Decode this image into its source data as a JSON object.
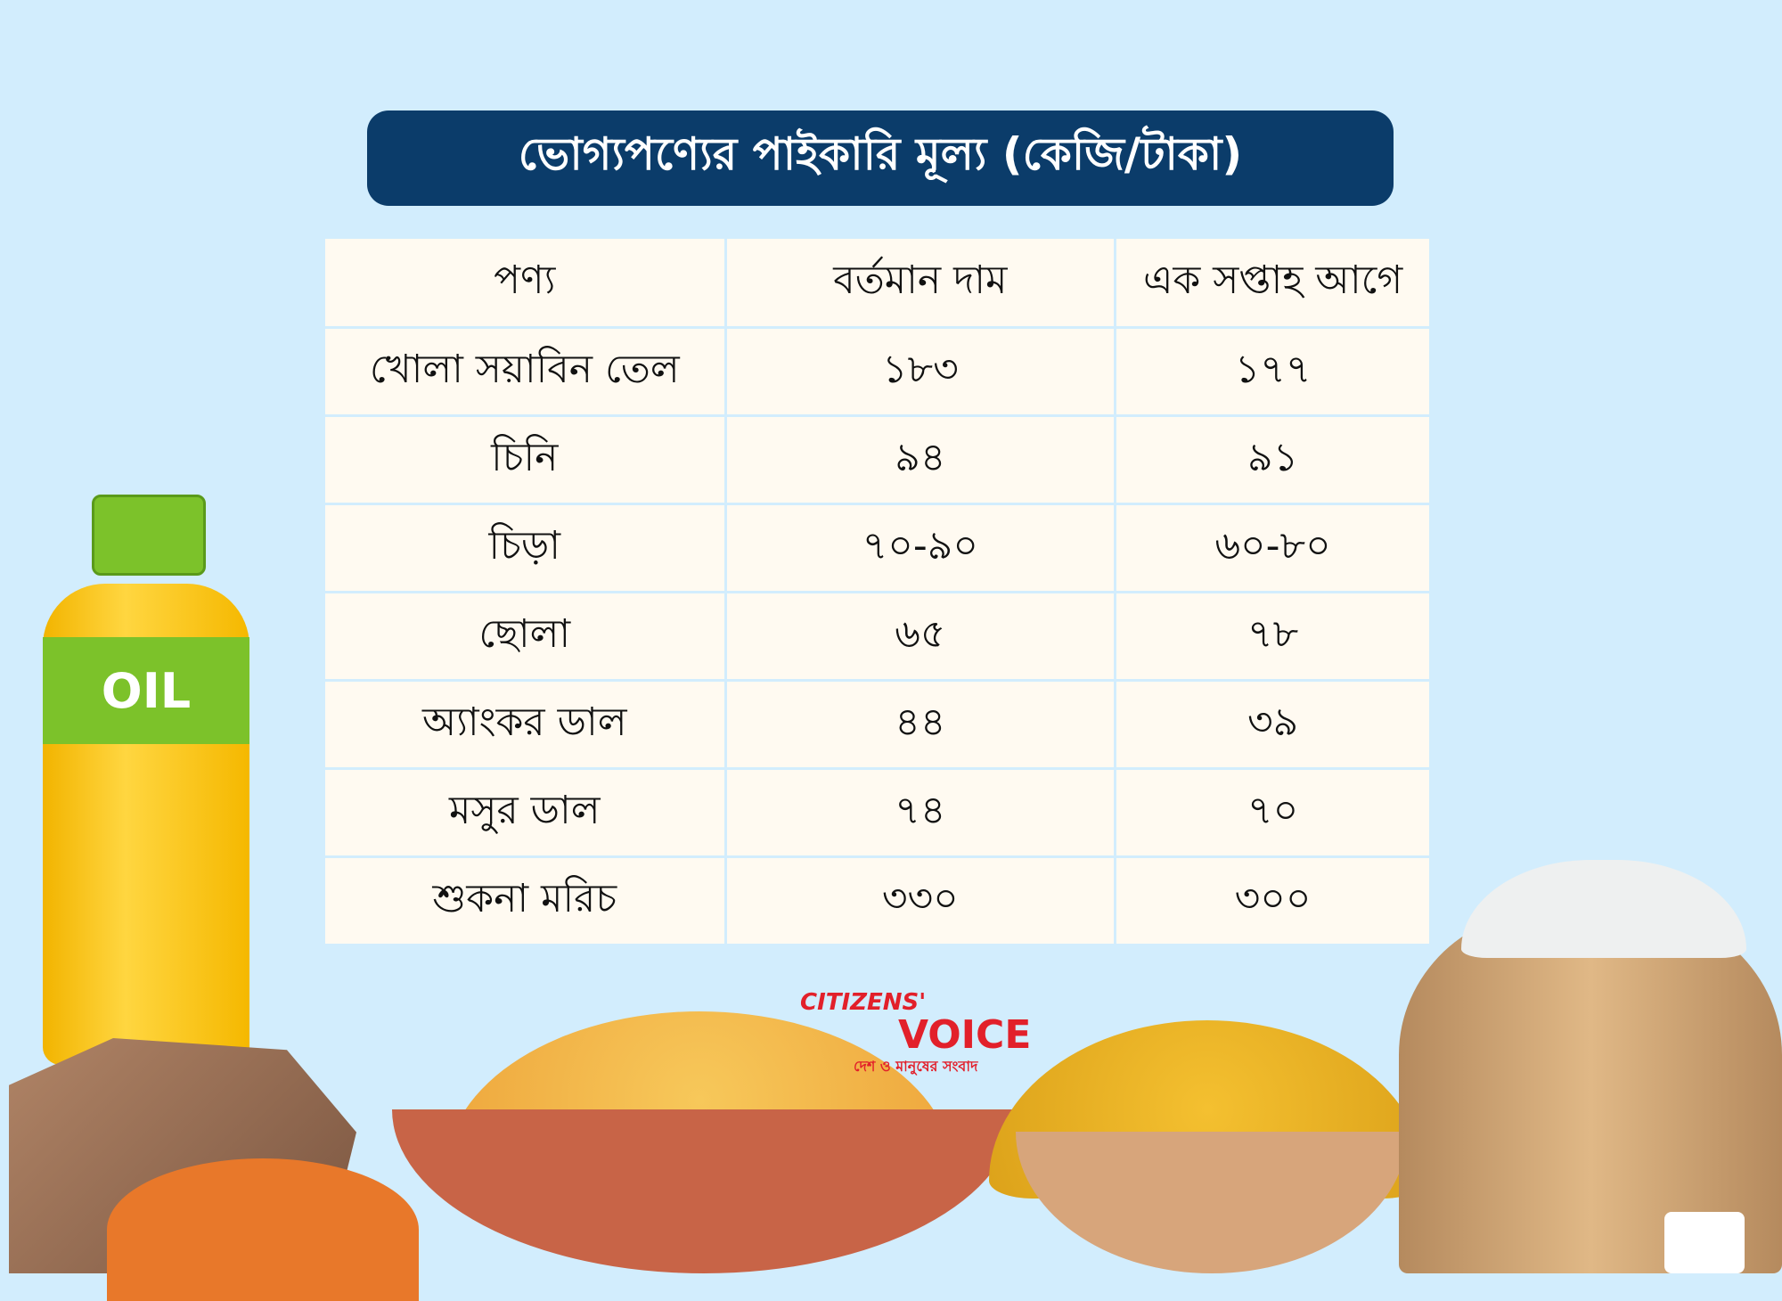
{
  "title": "ভোগ্যপণ্যের পাইকারি মূল্য (কেজি/টাকা)",
  "table": {
    "headers": [
      "পণ্য",
      "বর্তমান দাম",
      "এক সপ্তাহ আগে"
    ],
    "rows": [
      [
        "খোলা সয়াবিন তেল",
        "১৮৩",
        "১৭৭"
      ],
      [
        "চিনি",
        "৯৪",
        "৯১"
      ],
      [
        "চিড়া",
        "৭০-৯০",
        "৬০-৮০"
      ],
      [
        "ছোলা",
        "৬৫",
        "৭৮"
      ],
      [
        "অ্যাংকর ডাল",
        "৪৪",
        "৩৯"
      ],
      [
        "মসুর ডাল",
        "৭৪",
        "৭০"
      ],
      [
        "শুকনা মরিচ",
        "৩৩০",
        "৩০০"
      ]
    ]
  },
  "bottle_label": "OIL",
  "logo": {
    "line1": "CITIZENS'",
    "line2": "VOICE",
    "tagline": "দেশ ও মানুষের সংবাদ"
  },
  "colors": {
    "background": "#d2edfd",
    "title_bg": "#0b3c6a",
    "cell_bg": "#fffaf1",
    "logo": "#e2202a"
  }
}
